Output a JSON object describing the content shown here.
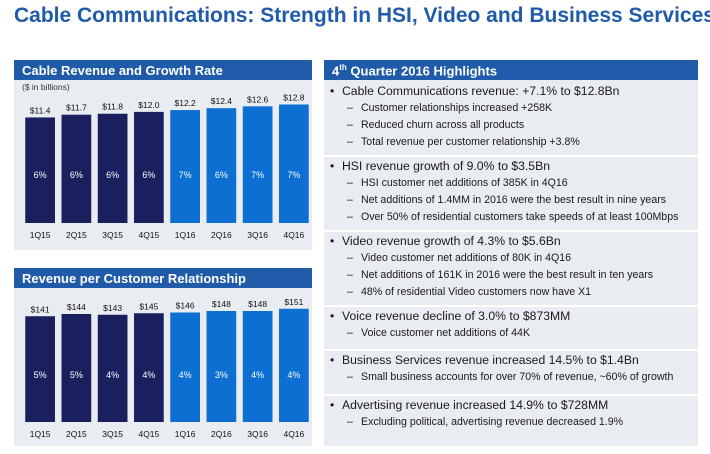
{
  "title": "Cable Communications: Strength in HSI, Video and Business Services",
  "colors": {
    "brand": "#1f5ba8",
    "dark_bar": "#1a1f5e",
    "light_bar": "#0d6fd1",
    "panel_bg": "#e9ecf1"
  },
  "chart_data": [
    {
      "type": "bar",
      "title": "Cable Revenue and Growth Rate",
      "unit_note": "($ in billions)",
      "categories": [
        "1Q15",
        "2Q15",
        "3Q15",
        "4Q15",
        "1Q16",
        "2Q16",
        "3Q16",
        "4Q16"
      ],
      "values": [
        11.4,
        11.7,
        11.8,
        12.0,
        12.2,
        12.4,
        12.6,
        12.8
      ],
      "value_labels": [
        "$11.4",
        "$11.7",
        "$11.8",
        "$12.0",
        "$12.2",
        "$12.4",
        "$12.6",
        "$12.8"
      ],
      "growth_labels": [
        "6%",
        "6%",
        "6%",
        "6%",
        "7%",
        "6%",
        "7%",
        "7%"
      ],
      "series_year": [
        "2015",
        "2015",
        "2015",
        "2015",
        "2016",
        "2016",
        "2016",
        "2016"
      ],
      "ylim": [
        0,
        13.5
      ]
    },
    {
      "type": "bar",
      "title": "Revenue per Customer Relationship",
      "categories": [
        "1Q15",
        "2Q15",
        "3Q15",
        "4Q15",
        "1Q16",
        "2Q16",
        "3Q16",
        "4Q16"
      ],
      "values": [
        141,
        144,
        143,
        145,
        146,
        148,
        148,
        151
      ],
      "value_labels": [
        "$141",
        "$144",
        "$143",
        "$145",
        "$146",
        "$148",
        "$148",
        "$151"
      ],
      "growth_labels": [
        "5%",
        "5%",
        "4%",
        "4%",
        "4%",
        "3%",
        "4%",
        "4%"
      ],
      "series_year": [
        "2015",
        "2015",
        "2015",
        "2015",
        "2016",
        "2016",
        "2016",
        "2016"
      ],
      "ylim": [
        0,
        160
      ]
    }
  ],
  "highlights": {
    "heading_prefix": "4",
    "heading_sup": "th",
    "heading_rest": " Quarter 2016 Highlights",
    "sections": [
      {
        "main": "Cable Communications revenue: +7.1% to $12.8Bn",
        "subs": [
          "Customer relationships increased +258K",
          "Reduced churn across all products",
          "Total revenue per customer relationship +3.8%"
        ]
      },
      {
        "main": "HSI revenue growth of 9.0% to $3.5Bn",
        "subs": [
          "HSI customer net additions of 385K in 4Q16",
          "Net additions of 1.4MM in 2016 were the best result in nine years",
          "Over 50% of residential customers take speeds of at least 100Mbps"
        ]
      },
      {
        "main": "Video revenue growth of 4.3% to $5.6Bn",
        "subs": [
          "Video customer net additions of 80K in 4Q16",
          "Net additions of 161K in 2016 were the best result in ten years",
          "48% of residential Video customers now have X1"
        ]
      },
      {
        "main": "Voice revenue decline of 3.0% to $873MM",
        "subs": [
          "Voice customer net additions of 44K"
        ]
      },
      {
        "main": "Business Services revenue increased 14.5% to $1.4Bn",
        "subs": [
          "Small business accounts for over 70% of revenue, ~60% of growth"
        ]
      },
      {
        "main": "Advertising revenue increased 14.9% to $728MM",
        "subs": [
          "Excluding political, advertising revenue decreased 1.9%"
        ]
      }
    ]
  }
}
